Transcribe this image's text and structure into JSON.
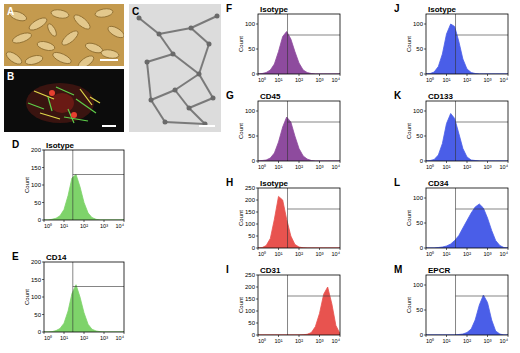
{
  "images": [
    {
      "label": "A"
    },
    {
      "label": "B"
    },
    {
      "label": "C"
    }
  ],
  "chart_data": [
    {
      "type": "area",
      "title": "Isotype",
      "annotations": [
        "D"
      ],
      "ylabel": "Count",
      "log": "x",
      "color": "#7ed36a",
      "grid": false,
      "x": [
        1,
        1.6,
        2.5,
        4,
        6.3,
        10,
        16,
        25,
        40,
        63,
        100,
        160,
        250,
        400,
        630,
        1000,
        1600,
        2500,
        4000,
        6300,
        10000
      ],
      "values": [
        0,
        0,
        2,
        5,
        12,
        30,
        70,
        120,
        130,
        95,
        50,
        20,
        7,
        2,
        0,
        0,
        0,
        0,
        0,
        0,
        0
      ],
      "xlim": [
        1,
        10000
      ],
      "xticks": [
        {
          "value": 1,
          "label": "10⁰"
        },
        {
          "value": 10,
          "label": "10¹"
        },
        {
          "value": 100,
          "label": "10²"
        },
        {
          "value": 1000,
          "label": "10³"
        },
        {
          "value": 10000,
          "label": "10⁴"
        }
      ],
      "ylim": [
        0,
        200
      ],
      "yticks": [
        0,
        50,
        100,
        150,
        200
      ]
    },
    {
      "type": "area",
      "title": "CD14",
      "annotations": [
        "E"
      ],
      "ylabel": "Count",
      "log": "x",
      "color": "#7ed36a",
      "grid": false,
      "x": [
        1,
        1.6,
        2.5,
        4,
        6.3,
        10,
        16,
        25,
        40,
        63,
        100,
        160,
        250,
        400,
        630,
        1000,
        1600,
        2500,
        4000,
        6300,
        10000
      ],
      "values": [
        0,
        0,
        1,
        4,
        10,
        25,
        60,
        110,
        135,
        100,
        55,
        22,
        8,
        3,
        1,
        0,
        0,
        0,
        0,
        0,
        0
      ],
      "xlim": [
        1,
        10000
      ],
      "xticks": [
        {
          "value": 1,
          "label": "10⁰"
        },
        {
          "value": 10,
          "label": "10¹"
        },
        {
          "value": 100,
          "label": "10²"
        },
        {
          "value": 1000,
          "label": "10³"
        },
        {
          "value": 10000,
          "label": "10⁴"
        }
      ],
      "ylim": [
        0,
        200
      ],
      "yticks": [
        0,
        50,
        100,
        150,
        200
      ]
    },
    {
      "type": "area",
      "title": "Isotype",
      "annotations": [
        "F"
      ],
      "ylabel": "Count",
      "log": "x",
      "color": "#8e4b9e",
      "grid": false,
      "x": [
        1,
        1.6,
        2.5,
        4,
        6.3,
        10,
        16,
        25,
        40,
        63,
        100,
        160,
        250,
        400,
        630,
        1000,
        1600,
        2500,
        4000,
        6300,
        10000
      ],
      "values": [
        0,
        1,
        3,
        8,
        20,
        45,
        75,
        85,
        70,
        45,
        22,
        8,
        3,
        1,
        0,
        0,
        0,
        0,
        0,
        0,
        0
      ],
      "xlim": [
        1,
        10000
      ],
      "xticks": [
        {
          "value": 1,
          "label": "10⁰"
        },
        {
          "value": 10,
          "label": "10¹"
        },
        {
          "value": 100,
          "label": "10²"
        },
        {
          "value": 1000,
          "label": "10³"
        },
        {
          "value": 10000,
          "label": "10⁴"
        }
      ],
      "ylim": [
        0,
        120
      ],
      "yticks": [
        0,
        50,
        100
      ]
    },
    {
      "type": "area",
      "title": "CD45",
      "annotations": [
        "G"
      ],
      "ylabel": "Count",
      "log": "x",
      "color": "#8e4b9e",
      "grid": false,
      "x": [
        1,
        1.6,
        2.5,
        4,
        6.3,
        10,
        16,
        25,
        40,
        63,
        100,
        160,
        250,
        400,
        630,
        1000,
        1600,
        2500,
        4000,
        6300,
        10000
      ],
      "values": [
        0,
        1,
        2,
        6,
        16,
        38,
        68,
        88,
        78,
        50,
        25,
        10,
        4,
        1,
        0,
        0,
        0,
        0,
        0,
        0,
        0
      ],
      "xlim": [
        1,
        10000
      ],
      "xticks": [
        {
          "value": 1,
          "label": "10⁰"
        },
        {
          "value": 10,
          "label": "10¹"
        },
        {
          "value": 100,
          "label": "10²"
        },
        {
          "value": 1000,
          "label": "10³"
        },
        {
          "value": 10000,
          "label": "10⁴"
        }
      ],
      "ylim": [
        0,
        120
      ],
      "yticks": [
        0,
        50,
        100
      ]
    },
    {
      "type": "area",
      "title": "Isotype",
      "annotations": [
        "H"
      ],
      "ylabel": "Count",
      "log": "x",
      "color": "#e8534f",
      "grid": false,
      "x": [
        1,
        1.6,
        2.5,
        4,
        6.3,
        10,
        16,
        25,
        40,
        63,
        100,
        160,
        250,
        400,
        630,
        1000,
        1600,
        2500,
        4000,
        6300,
        10000
      ],
      "values": [
        0,
        2,
        10,
        40,
        120,
        215,
        200,
        120,
        50,
        15,
        4,
        1,
        0,
        0,
        0,
        0,
        0,
        0,
        0,
        0,
        0
      ],
      "xlim": [
        1,
        10000
      ],
      "xticks": [
        {
          "value": 1,
          "label": "10⁰"
        },
        {
          "value": 10,
          "label": "10¹"
        },
        {
          "value": 100,
          "label": "10²"
        },
        {
          "value": 1000,
          "label": "10³"
        },
        {
          "value": 10000,
          "label": "10⁴"
        }
      ],
      "ylim": [
        0,
        250
      ],
      "yticks": [
        0,
        50,
        100,
        150,
        200,
        250
      ]
    },
    {
      "type": "area",
      "title": "CD31",
      "annotations": [
        "I"
      ],
      "ylabel": "Count",
      "log": "x",
      "color": "#e8534f",
      "grid": false,
      "x": [
        1,
        1.6,
        2.5,
        4,
        6.3,
        10,
        16,
        25,
        40,
        63,
        100,
        160,
        250,
        400,
        630,
        1000,
        1600,
        2500,
        4000,
        6300,
        10000
      ],
      "values": [
        0,
        0,
        0,
        0,
        0,
        0,
        0,
        0,
        0,
        0,
        0,
        1,
        3,
        10,
        35,
        90,
        170,
        200,
        130,
        40,
        5
      ],
      "xlim": [
        1,
        10000
      ],
      "xticks": [
        {
          "value": 1,
          "label": "10⁰"
        },
        {
          "value": 10,
          "label": "10¹"
        },
        {
          "value": 100,
          "label": "10²"
        },
        {
          "value": 1000,
          "label": "10³"
        },
        {
          "value": 10000,
          "label": "10⁴"
        }
      ],
      "ylim": [
        0,
        250
      ],
      "yticks": [
        0,
        50,
        100,
        150,
        200,
        250
      ]
    },
    {
      "type": "area",
      "title": "Isotype",
      "annotations": [
        "J"
      ],
      "ylabel": "Count",
      "log": "x",
      "color": "#4a5ee8",
      "grid": false,
      "x": [
        1,
        1.6,
        2.5,
        4,
        6.3,
        10,
        16,
        25,
        40,
        63,
        100,
        160,
        250,
        400,
        630,
        1000,
        1600,
        2500,
        4000,
        6300,
        10000
      ],
      "values": [
        0,
        1,
        4,
        15,
        40,
        80,
        100,
        95,
        65,
        30,
        10,
        3,
        1,
        0,
        0,
        0,
        0,
        0,
        0,
        0,
        0
      ],
      "xlim": [
        1,
        10000
      ],
      "xticks": [
        {
          "value": 1,
          "label": "10⁰"
        },
        {
          "value": 10,
          "label": "10¹"
        },
        {
          "value": 100,
          "label": "10²"
        },
        {
          "value": 1000,
          "label": "10³"
        },
        {
          "value": 10000,
          "label": "10⁴"
        }
      ],
      "ylim": [
        0,
        120
      ],
      "yticks": [
        0,
        50,
        100
      ]
    },
    {
      "type": "area",
      "title": "CD133",
      "annotations": [
        "K"
      ],
      "ylabel": "Count",
      "log": "x",
      "color": "#4a5ee8",
      "grid": false,
      "x": [
        1,
        1.6,
        2.5,
        4,
        6.3,
        10,
        16,
        25,
        40,
        63,
        100,
        160,
        250,
        400,
        630,
        1000,
        1600,
        2500,
        4000,
        6300,
        10000
      ],
      "values": [
        0,
        1,
        3,
        12,
        35,
        75,
        95,
        85,
        55,
        25,
        8,
        2,
        1,
        0,
        0,
        0,
        0,
        0,
        0,
        0,
        0
      ],
      "xlim": [
        1,
        10000
      ],
      "xticks": [
        {
          "value": 1,
          "label": "10⁰"
        },
        {
          "value": 10,
          "label": "10¹"
        },
        {
          "value": 100,
          "label": "10²"
        },
        {
          "value": 1000,
          "label": "10³"
        },
        {
          "value": 10000,
          "label": "10⁴"
        }
      ],
      "ylim": [
        0,
        120
      ],
      "yticks": [
        0,
        50,
        100
      ]
    },
    {
      "type": "area",
      "title": "CD34",
      "annotations": [
        "L"
      ],
      "ylabel": "Count",
      "log": "x",
      "color": "#4a5ee8",
      "grid": false,
      "x": [
        1,
        1.6,
        2.5,
        4,
        6.3,
        10,
        16,
        25,
        40,
        63,
        100,
        160,
        250,
        400,
        630,
        1000,
        1600,
        2500,
        4000,
        6300,
        10000
      ],
      "values": [
        0,
        0,
        0,
        1,
        2,
        4,
        8,
        15,
        25,
        40,
        55,
        70,
        82,
        88,
        80,
        60,
        35,
        15,
        5,
        1,
        0
      ],
      "xlim": [
        1,
        10000
      ],
      "xticks": [
        {
          "value": 1,
          "label": "10⁰"
        },
        {
          "value": 10,
          "label": "10¹"
        },
        {
          "value": 100,
          "label": "10²"
        },
        {
          "value": 1000,
          "label": "10³"
        },
        {
          "value": 10000,
          "label": "10⁴"
        }
      ],
      "ylim": [
        0,
        120
      ],
      "yticks": [
        0,
        50,
        100
      ]
    },
    {
      "type": "area",
      "title": "EPCR",
      "annotations": [
        "M"
      ],
      "ylabel": "Count",
      "log": "x",
      "color": "#4a5ee8",
      "grid": false,
      "x": [
        1,
        1.6,
        2.5,
        4,
        6.3,
        10,
        16,
        25,
        40,
        63,
        100,
        160,
        250,
        400,
        630,
        1000,
        1600,
        2500,
        4000,
        6300,
        10000
      ],
      "values": [
        0,
        0,
        0,
        0,
        0,
        0,
        0,
        0,
        1,
        2,
        5,
        12,
        30,
        60,
        80,
        65,
        30,
        8,
        2,
        0,
        0
      ],
      "xlim": [
        1,
        10000
      ],
      "xticks": [
        {
          "value": 1,
          "label": "10⁰"
        },
        {
          "value": 10,
          "label": "10¹"
        },
        {
          "value": 100,
          "label": "10²"
        },
        {
          "value": 1000,
          "label": "10³"
        },
        {
          "value": 10000,
          "label": "10⁴"
        }
      ],
      "ylim": [
        0,
        120
      ],
      "yticks": [
        0,
        50,
        100
      ]
    }
  ]
}
